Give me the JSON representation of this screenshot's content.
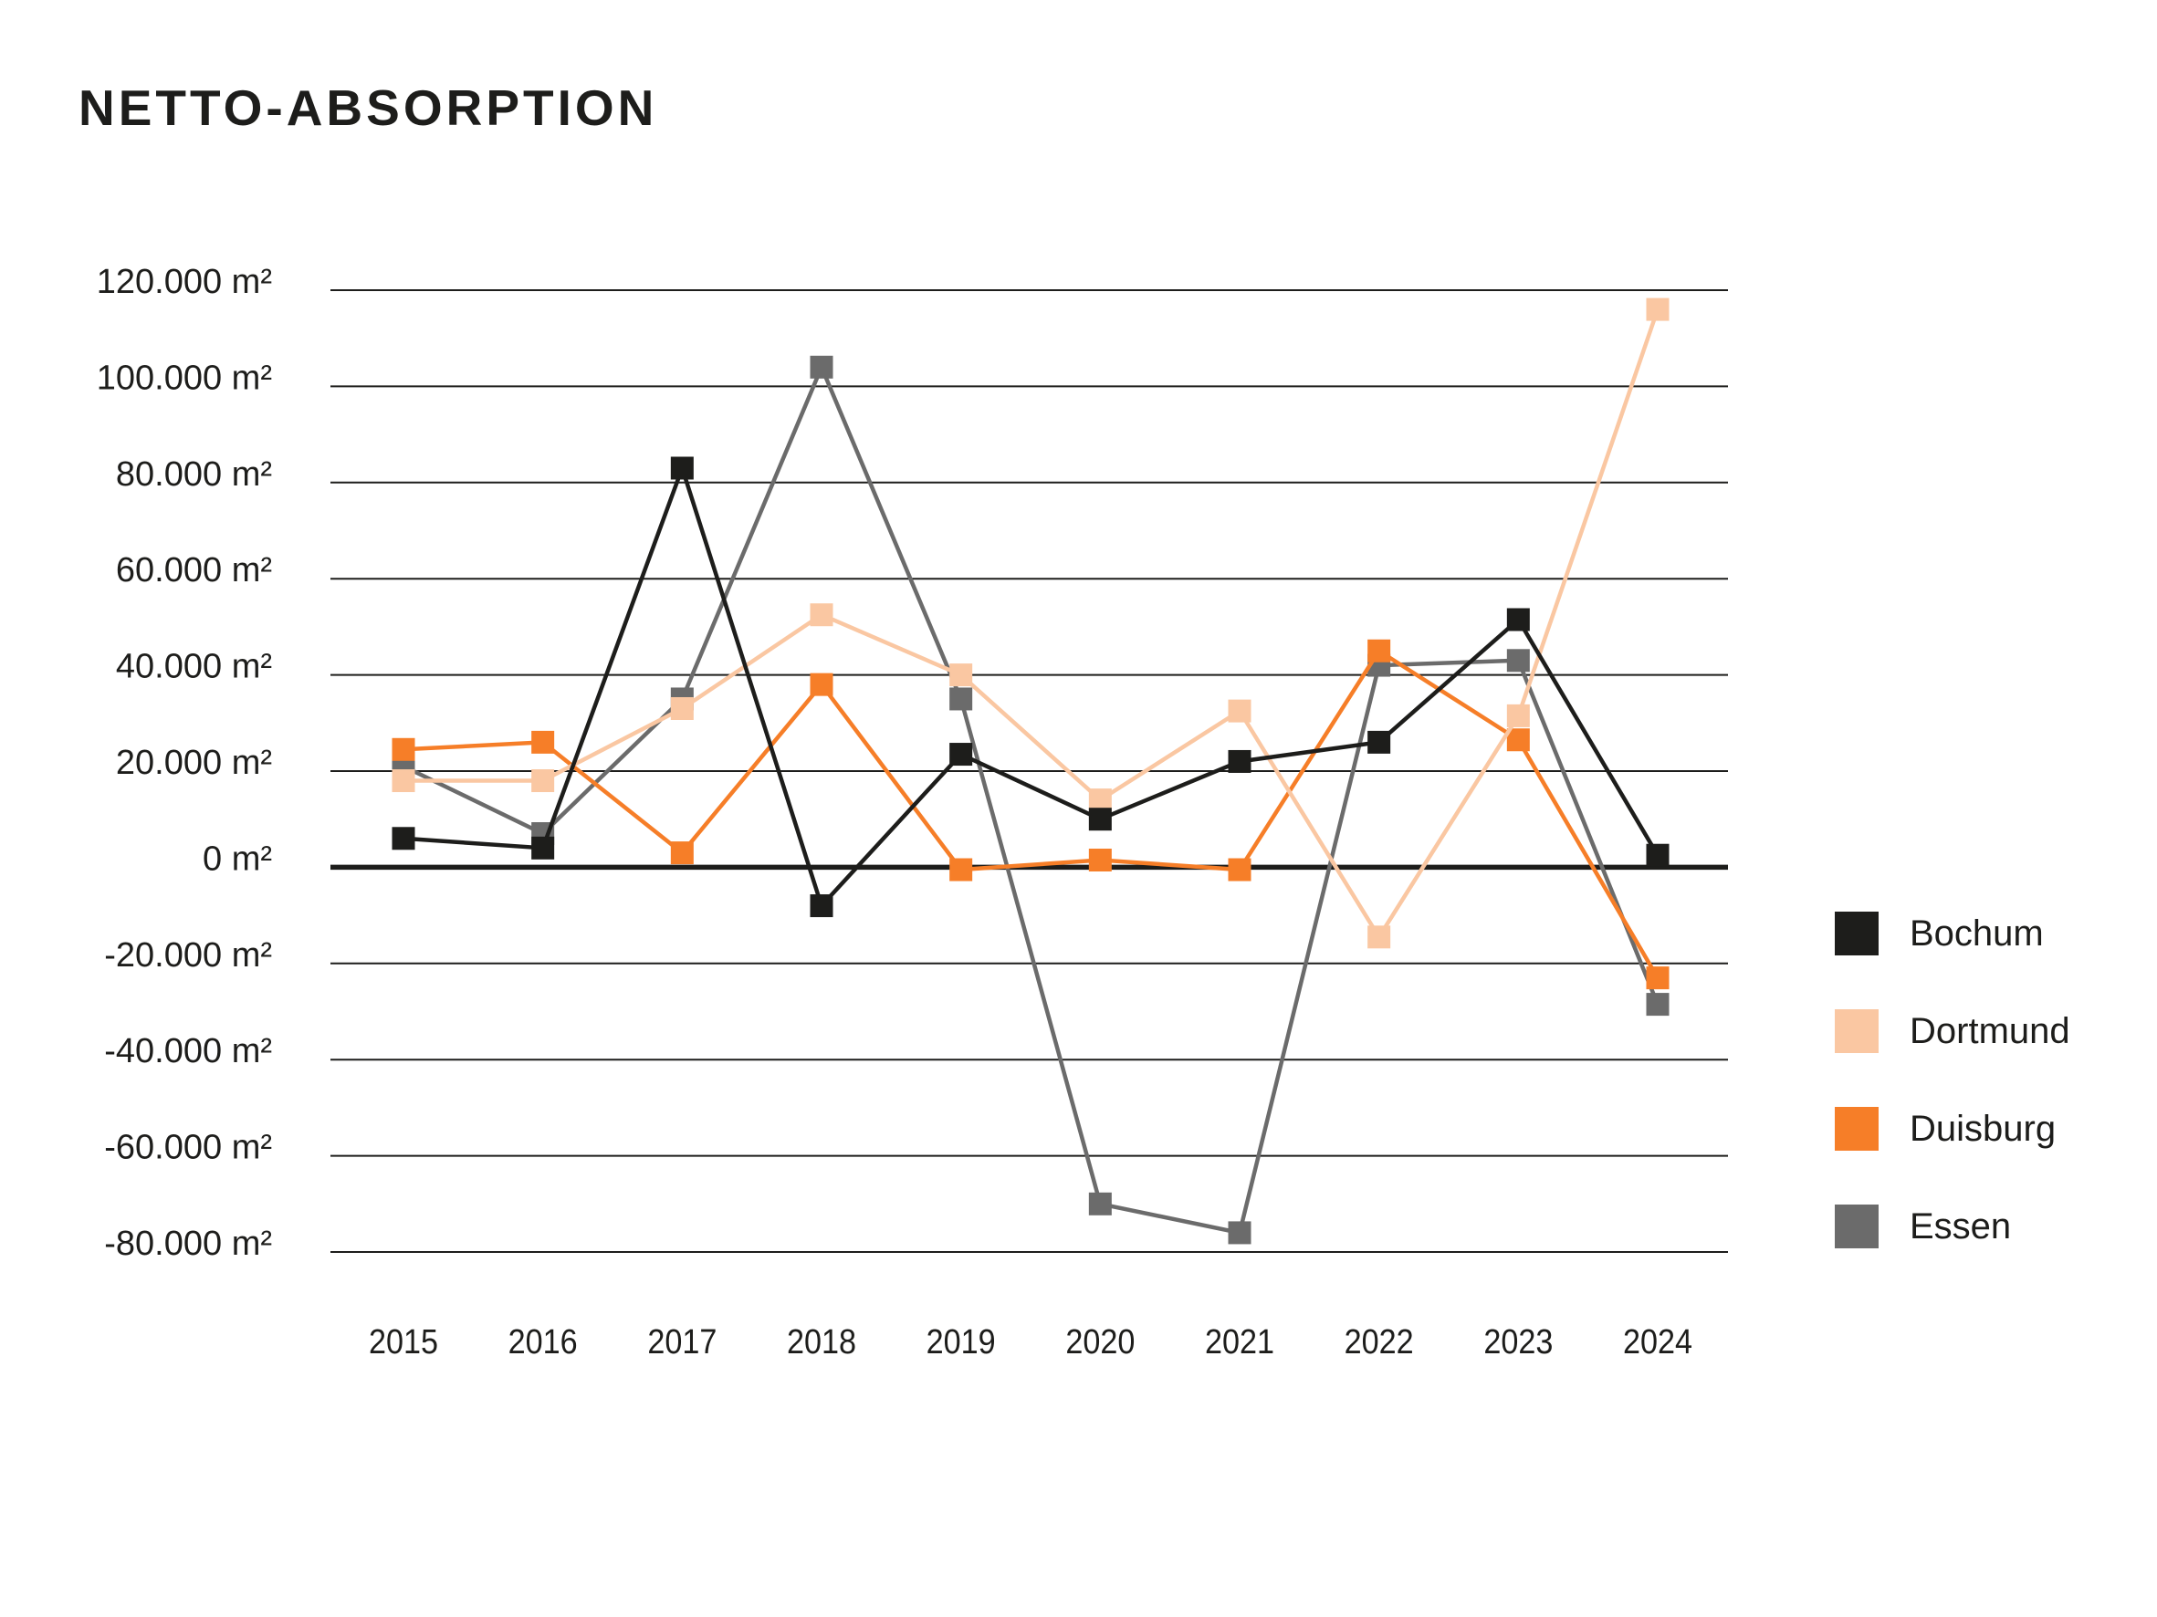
{
  "title": "NETTO-ABSORPTION",
  "chart_data": {
    "type": "line",
    "title": "NETTO-ABSORPTION",
    "unit": "m²",
    "categories": [
      "2015",
      "2016",
      "2017",
      "2018",
      "2019",
      "2020",
      "2021",
      "2022",
      "2023",
      "2024"
    ],
    "ylim": [
      -80000,
      120000
    ],
    "ytick_step": 20000,
    "ytick_labels": [
      "120.000 m²",
      "100.000 m²",
      "80.000 m²",
      "60.000 m²",
      "40.000 m²",
      "20.000 m²",
      "0 m²",
      "-20.000 m²",
      "-40.000 m²",
      "-60.000 m²",
      "-80.000 m²"
    ],
    "grid": true,
    "legend_position": "right",
    "marker": "square",
    "series": [
      {
        "name": "Bochum",
        "color": "#1d1d1b",
        "values": [
          6000,
          4000,
          83000,
          -8000,
          23500,
          10000,
          22000,
          26000,
          51500,
          2500
        ]
      },
      {
        "name": "Dortmund",
        "color": "#fac7a2",
        "values": [
          18000,
          18000,
          33000,
          52500,
          40000,
          14000,
          32500,
          -14500,
          31500,
          116000
        ]
      },
      {
        "name": "Duisburg",
        "color": "#f67e28",
        "values": [
          24500,
          26000,
          3000,
          38000,
          -500,
          1500,
          -500,
          45000,
          26500,
          -23000
        ]
      },
      {
        "name": "Essen",
        "color": "#6b6b6b",
        "values": [
          21000,
          7000,
          35000,
          104000,
          35000,
          -70000,
          -76000,
          42000,
          43000,
          -28500
        ]
      }
    ]
  }
}
